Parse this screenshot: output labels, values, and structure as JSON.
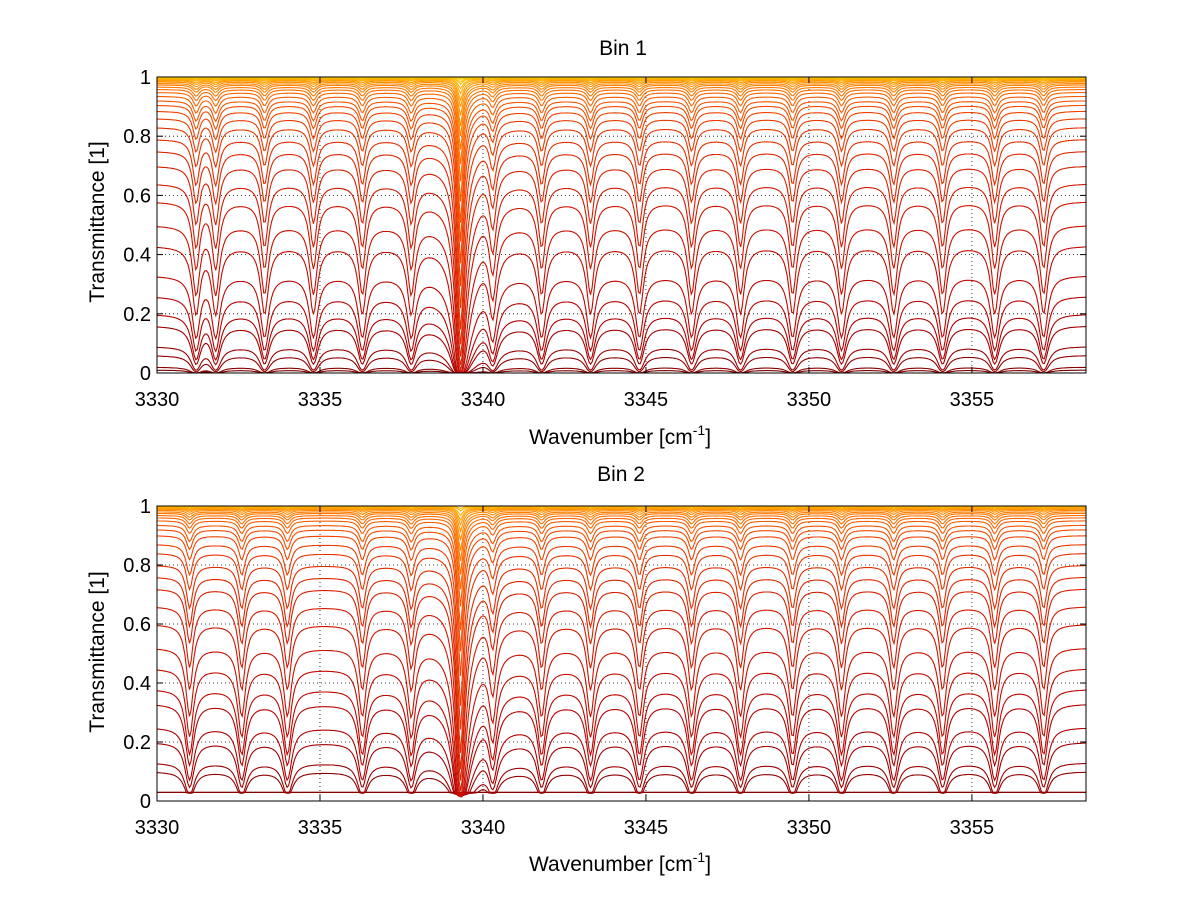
{
  "chart_data": [
    {
      "type": "line",
      "title": "Bin 1",
      "xlabel": "Wavenumber [cm",
      "xlabel_sup": "-1",
      "xlabel_close": "]",
      "ylabel": "Transmittance [1]",
      "xlim": [
        3330,
        3358.5
      ],
      "ylim": [
        0,
        1
      ],
      "xticks": [
        3330,
        3335,
        3340,
        3345,
        3350,
        3355
      ],
      "yticks": [
        0,
        0.2,
        0.4,
        0.6,
        0.8,
        1
      ],
      "xtick_labels": [
        "3330",
        "3335",
        "3340",
        "3345",
        "3350",
        "3355"
      ],
      "ytick_labels": [
        "0",
        "0.2",
        "0.4",
        "0.6",
        "0.8",
        "1"
      ],
      "grid": "dotted",
      "colormap": [
        "#7f0000",
        "#b30000",
        "#d41a00",
        "#f04000",
        "#ff7000",
        "#ffa000",
        "#ffd000",
        "#ffff00"
      ],
      "series_count": 40,
      "strong_line": {
        "x": 3339.3,
        "min_transmittance": 0.0
      },
      "line_positions": [
        3331.2,
        3331.8,
        3333.3,
        3334.8,
        3336.3,
        3337.8,
        3339.3,
        3340.3,
        3341.8,
        3343.3,
        3344.8,
        3346.4,
        3347.9,
        3349.5,
        3351.0,
        3352.6,
        3354.1,
        3355.7,
        3357.2
      ],
      "continuum_levels": [
        0.01,
        0.02,
        0.06,
        0.09,
        0.16,
        0.2,
        0.26,
        0.33,
        0.43,
        0.5,
        0.58,
        0.64,
        0.7,
        0.75,
        0.79,
        0.83,
        0.86,
        0.885,
        0.905,
        0.92,
        0.935,
        0.948,
        0.958,
        0.966,
        0.973,
        0.978,
        0.983,
        0.987,
        0.99,
        0.993,
        0.995,
        0.997,
        0.998,
        0.999,
        0.9995,
        1.0,
        1.0,
        1.0,
        1.0,
        1.0
      ]
    },
    {
      "type": "line",
      "title": "Bin 2",
      "xlabel": "Wavenumber [cm",
      "xlabel_sup": "-1",
      "xlabel_close": "]",
      "ylabel": "Transmittance [1]",
      "xlim": [
        3330,
        3358.5
      ],
      "ylim": [
        0,
        1
      ],
      "xticks": [
        3330,
        3335,
        3340,
        3345,
        3350,
        3355
      ],
      "yticks": [
        0,
        0.2,
        0.4,
        0.6,
        0.8,
        1
      ],
      "xtick_labels": [
        "3330",
        "3335",
        "3340",
        "3345",
        "3350",
        "3355"
      ],
      "ytick_labels": [
        "0",
        "0.2",
        "0.4",
        "0.6",
        "0.8",
        "1"
      ],
      "grid": "dotted",
      "colormap": [
        "#7f0000",
        "#b30000",
        "#d41a00",
        "#f04000",
        "#ff7000",
        "#ffa000",
        "#ffd000",
        "#ffff00"
      ],
      "series_count": 40,
      "strong_line": {
        "x": 3339.3,
        "min_transmittance": 0.03
      },
      "line_positions": [
        3331.0,
        3332.6,
        3334.0,
        3336.3,
        3337.8,
        3339.3,
        3340.3,
        3341.8,
        3343.3,
        3344.8,
        3346.4,
        3347.9,
        3349.5,
        3351.0,
        3352.6,
        3354.1,
        3355.7,
        3357.2
      ],
      "continuum_levels": [
        0.015,
        0.03,
        0.1,
        0.13,
        0.2,
        0.25,
        0.33,
        0.38,
        0.45,
        0.52,
        0.6,
        0.66,
        0.72,
        0.76,
        0.8,
        0.84,
        0.87,
        0.9,
        0.92,
        0.935,
        0.95,
        0.96,
        0.968,
        0.975,
        0.98,
        0.985,
        0.989,
        0.992,
        0.994,
        0.996,
        0.998,
        0.999,
        1.0,
        1.0,
        1.0,
        1.0,
        1.0,
        1.0,
        1.0,
        1.0
      ]
    }
  ]
}
